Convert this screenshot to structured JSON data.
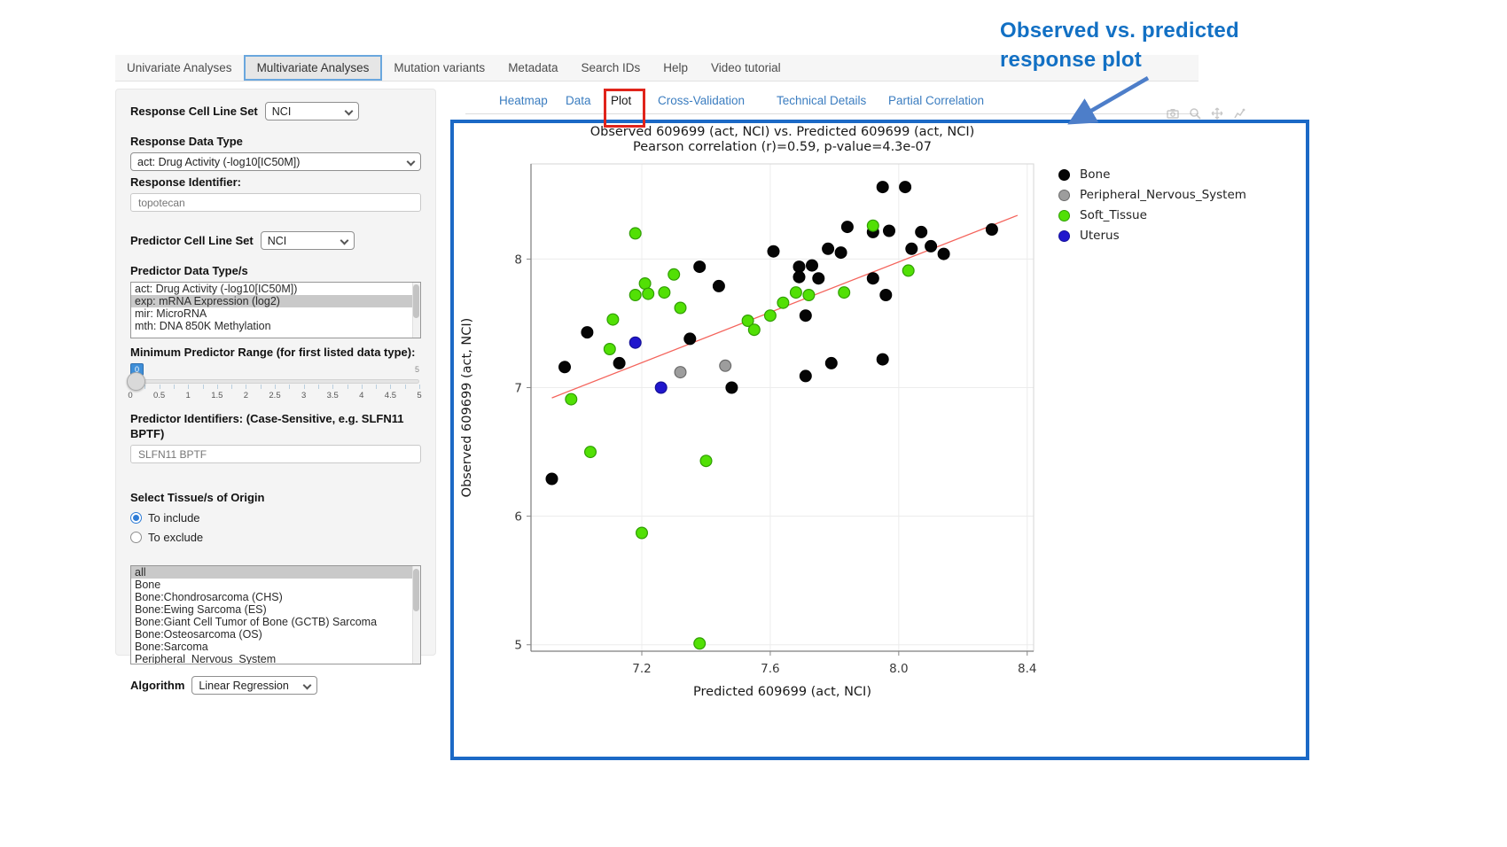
{
  "annotation": {
    "line1": "Observed  vs. predicted",
    "line2": "response plot"
  },
  "colors": {
    "panel_border_blue": "#1b69c6",
    "annotation_blue": "#1270c4",
    "arrow_blue": "#4d7ec9",
    "red_box": "#e0241b",
    "subtab_blue": "#3b7dc0",
    "regression_red": "#f4645c"
  },
  "nav": {
    "tabs": [
      {
        "label": "Univariate Analyses",
        "active": false
      },
      {
        "label": "Multivariate Analyses",
        "active": true
      },
      {
        "label": "Mutation variants",
        "active": false
      },
      {
        "label": "Metadata",
        "active": false
      },
      {
        "label": "Search IDs",
        "active": false
      },
      {
        "label": "Help",
        "active": false
      },
      {
        "label": "Video tutorial",
        "active": false
      }
    ]
  },
  "subtabs": [
    {
      "label": "Heatmap",
      "active": false
    },
    {
      "label": "Data",
      "active": false
    },
    {
      "label": "Plot",
      "active": true
    },
    {
      "label": "Cross-Validation",
      "active": false
    },
    {
      "label": "Technical Details",
      "active": false
    },
    {
      "label": "Partial Correlation",
      "active": false
    }
  ],
  "modebar_icons": [
    "camera-icon",
    "zoom-icon",
    "pan-icon",
    "autoscale-icon"
  ],
  "sidebar": {
    "response_cell_line_set": {
      "label": "Response Cell Line Set",
      "value": "NCI"
    },
    "response_data_type": {
      "label": "Response Data Type",
      "value": "act: Drug Activity (-log10[IC50M])"
    },
    "response_identifier": {
      "label": "Response Identifier:",
      "value": "topotecan"
    },
    "predictor_cell_line_set": {
      "label": "Predictor Cell Line Set",
      "value": "NCI"
    },
    "predictor_data_types": {
      "label": "Predictor Data Type/s",
      "options": [
        "act: Drug Activity (-log10[IC50M])",
        "exp: mRNA Expression (log2)",
        "mir: MicroRNA",
        "mth: DNA 850K Methylation"
      ],
      "selected": "exp: mRNA Expression (log2)"
    },
    "min_predictor_range": {
      "label": "Minimum Predictor Range (for first listed data type):",
      "value": "0",
      "max_label": "5",
      "tick_labels": [
        "0",
        "0.5",
        "1",
        "1.5",
        "2",
        "2.5",
        "3",
        "3.5",
        "4",
        "4.5",
        "5"
      ]
    },
    "predictor_identifiers": {
      "label": "Predictor Identifiers: (Case-Sensitive, e.g. SLFN11 BPTF)",
      "value": "SLFN11 BPTF"
    },
    "tissue_origin": {
      "label": "Select Tissue/s of Origin",
      "include_label": "To include",
      "exclude_label": "To exclude",
      "include_selected": true,
      "options": [
        "all",
        "Bone",
        "Bone:Chondrosarcoma (CHS)",
        "Bone:Ewing Sarcoma (ES)",
        "Bone:Giant Cell Tumor of Bone (GCTB) Sarcoma",
        "Bone:Osteosarcoma (OS)",
        "Bone:Sarcoma",
        "Peripheral_Nervous_System"
      ],
      "selected": "all"
    },
    "algorithm": {
      "label": "Algorithm",
      "value": "Linear Regression"
    }
  },
  "chart_data": {
    "type": "scatter",
    "title": "Observed 609699 (act, NCI) vs. Predicted 609699 (act, NCI)",
    "subtitle": "Pearson correlation (r)=0.59, p-value=4.3e-07",
    "xlabel": "Predicted 609699 (act, NCI)",
    "ylabel": "Observed 609699 (act, NCI)",
    "xlim": [
      6.855,
      8.42
    ],
    "ylim": [
      4.95,
      8.74
    ],
    "x_ticks": [
      7.2,
      7.6,
      8.0,
      8.4
    ],
    "x_tick_labels": [
      "7.2",
      "7.6",
      "8.0",
      "8.4"
    ],
    "y_ticks": [
      5,
      6,
      7,
      8
    ],
    "y_tick_labels": [
      "5",
      "6",
      "7",
      "8"
    ],
    "grid": true,
    "legend_position": "right",
    "regression_line": {
      "x1": 6.92,
      "y1": 6.92,
      "x2": 8.37,
      "y2": 8.34,
      "color": "#f4645c"
    },
    "series": [
      {
        "name": "Bone",
        "color": "#050505",
        "stroke": "#000000",
        "points": [
          [
            7.95,
            8.56
          ],
          [
            8.02,
            8.56
          ],
          [
            7.84,
            8.25
          ],
          [
            7.92,
            8.21
          ],
          [
            7.97,
            8.22
          ],
          [
            8.07,
            8.21
          ],
          [
            8.29,
            8.23
          ],
          [
            8.04,
            8.08
          ],
          [
            8.1,
            8.1
          ],
          [
            8.14,
            8.04
          ],
          [
            7.61,
            8.06
          ],
          [
            7.78,
            8.08
          ],
          [
            7.82,
            8.05
          ],
          [
            7.38,
            7.94
          ],
          [
            7.69,
            7.94
          ],
          [
            7.73,
            7.95
          ],
          [
            7.69,
            7.86
          ],
          [
            7.75,
            7.85
          ],
          [
            7.92,
            7.85
          ],
          [
            7.44,
            7.79
          ],
          [
            7.96,
            7.72
          ],
          [
            7.71,
            7.56
          ],
          [
            7.03,
            7.43
          ],
          [
            7.35,
            7.38
          ],
          [
            7.13,
            7.19
          ],
          [
            6.96,
            7.16
          ],
          [
            7.79,
            7.19
          ],
          [
            7.95,
            7.22
          ],
          [
            7.71,
            7.09
          ],
          [
            7.48,
            7.0
          ],
          [
            6.92,
            6.29
          ]
        ]
      },
      {
        "name": "Peripheral_Nervous_System",
        "color": "#9d9d9d",
        "stroke": "#6b6b6b",
        "points": [
          [
            7.32,
            7.12
          ],
          [
            7.46,
            7.17
          ]
        ]
      },
      {
        "name": "Soft_Tissue",
        "color": "#52e005",
        "stroke": "#2f9e00",
        "points": [
          [
            7.18,
            8.2
          ],
          [
            7.92,
            8.26
          ],
          [
            7.3,
            7.88
          ],
          [
            7.21,
            7.81
          ],
          [
            7.18,
            7.72
          ],
          [
            7.22,
            7.73
          ],
          [
            7.27,
            7.74
          ],
          [
            7.32,
            7.62
          ],
          [
            7.11,
            7.53
          ],
          [
            7.1,
            7.3
          ],
          [
            7.53,
            7.52
          ],
          [
            7.55,
            7.45
          ],
          [
            7.6,
            7.56
          ],
          [
            7.64,
            7.66
          ],
          [
            7.68,
            7.74
          ],
          [
            7.72,
            7.72
          ],
          [
            7.83,
            7.74
          ],
          [
            8.03,
            7.91
          ],
          [
            6.98,
            6.91
          ],
          [
            7.04,
            6.5
          ],
          [
            7.4,
            6.43
          ],
          [
            7.2,
            5.87
          ],
          [
            7.38,
            5.01
          ]
        ]
      },
      {
        "name": "Uterus",
        "color": "#2016cd",
        "stroke": "#151199",
        "points": [
          [
            7.18,
            7.35
          ],
          [
            7.26,
            7.0
          ]
        ]
      }
    ]
  }
}
